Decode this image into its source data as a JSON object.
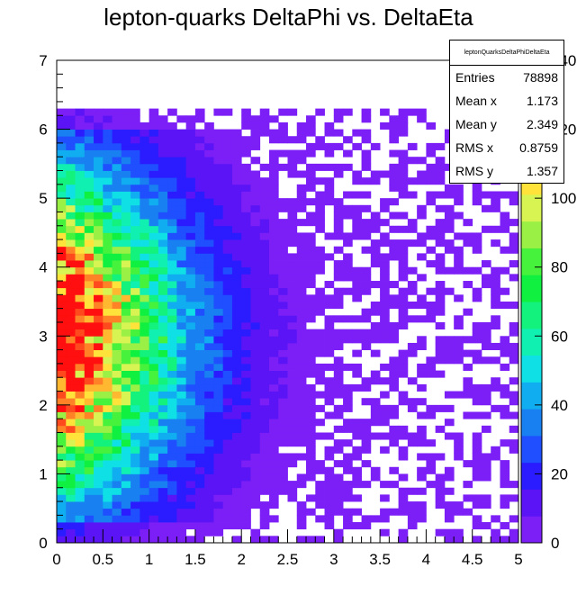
{
  "title": "lepton-quarks DeltaPhi vs. DeltaEta",
  "stats": {
    "name": "leptonQuarksDeltaPhiDeltaEta",
    "rows": [
      {
        "label": "Entries",
        "value": "78898"
      },
      {
        "label": "Mean x",
        "value": "1.173"
      },
      {
        "label": "Mean y",
        "value": "2.349"
      },
      {
        "label": "RMS x",
        "value": "0.8759"
      },
      {
        "label": "RMS y",
        "value": "1.357"
      }
    ]
  },
  "chart_data": {
    "type": "heatmap",
    "title": "lepton-quarks DeltaPhi vs. DeltaEta",
    "xlabel": "",
    "ylabel": "",
    "xlim": [
      0,
      5
    ],
    "ylim": [
      0,
      7
    ],
    "zlim": [
      0,
      140
    ],
    "x_bins": 50,
    "y_bins": 70,
    "x_ticks": [
      "0",
      "0.5",
      "1",
      "1.5",
      "2",
      "2.5",
      "3",
      "3.5",
      "4",
      "4.5",
      "5"
    ],
    "y_ticks": [
      "0",
      "1",
      "2",
      "3",
      "4",
      "5",
      "6",
      "7"
    ],
    "z_ticks": [
      "0",
      "20",
      "40",
      "60",
      "80",
      "100",
      "120",
      "140",
      "160",
      "180"
    ],
    "palette": [
      "#7c1ff7",
      "#5b14f5",
      "#2a1cff",
      "#1f4fff",
      "#1880f0",
      "#10aef0",
      "#0fe0e6",
      "#10f0b0",
      "#12f27c",
      "#10f040",
      "#46f23c",
      "#9af045",
      "#d8f452",
      "#ffe33a",
      "#ffb830",
      "#ff8326",
      "#ff4a1e",
      "#ff0f0f"
    ],
    "grid": false,
    "stats_box": "top-right",
    "description": "Bin counts estimated from the colour map: density peaks near x 0.2, y 3 (about 150) and falls off with x and toward y 0 and y 6.3; no entries above y 6.3."
  }
}
